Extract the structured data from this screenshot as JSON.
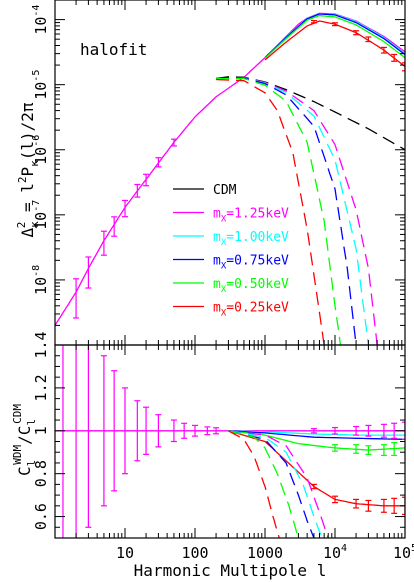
{
  "chart_data": [
    {
      "panel": "top",
      "type": "line",
      "scale": {
        "x": "log",
        "y": "log"
      },
      "xlim": [
        1,
        100000
      ],
      "ylim": [
        1e-09,
        0.0002
      ],
      "ylabel_parts": {
        "delta": "Δ",
        "sub": "κ",
        "sup": "2",
        "eq": " = l",
        "lsup": "2",
        "p": "P",
        "psub": "κ",
        "tail": "(l)/2π"
      },
      "ytick_labels": [
        "10^-8",
        "10^-7",
        "10^-6",
        "10^-5",
        "10^-4"
      ],
      "annotation": "halofit",
      "legend": {
        "placement": "center-right",
        "entries": [
          {
            "label": "CDM",
            "color": "#000000"
          },
          {
            "label": "m_X=1.25keV",
            "color": "#ff00ff"
          },
          {
            "label": "m_X=1.00keV",
            "color": "#00ffff"
          },
          {
            "label": "m_X=0.75keV",
            "color": "#0000ff"
          },
          {
            "label": "m_X=0.50keV",
            "color": "#00ff00"
          },
          {
            "label": "m_X=0.25keV",
            "color": "#ff0000"
          }
        ]
      },
      "series": [
        {
          "key": "cdm_nonlinear",
          "color": "#ff00ff",
          "style": "solid",
          "x": [
            1,
            2,
            3,
            5,
            10,
            20,
            50,
            100,
            200,
            500,
            1000,
            2000,
            3000,
            4000,
            6000,
            10000,
            20000,
            50000,
            100000
          ],
          "y": [
            2e-09,
            6.5e-09,
            1.5e-08,
            4e-08,
            1.3e-07,
            3.5e-07,
            1.3e-06,
            3.2e-06,
            6.5e-06,
            1.3e-05,
            2.6e-05,
            5.5e-05,
            8.5e-05,
            0.000105,
            0.000125,
            0.000122,
            9.5e-05,
            5.5e-05,
            3.2e-05
          ]
        },
        {
          "key": "wdm_1.25_nonlinear",
          "color": "#00ffff",
          "style": "solid",
          "x": [
            1000,
            2000,
            4000,
            6000,
            10000,
            20000,
            50000,
            100000
          ],
          "y": [
            2.6e-05,
            5.4e-05,
            0.000104,
            0.000123,
            0.00012,
            9.3e-05,
            5.3e-05,
            3e-05
          ]
        },
        {
          "key": "wdm_0.75_nonlinear",
          "color": "#0000ff",
          "style": "solid",
          "x": [
            1000,
            2000,
            4000,
            6000,
            10000,
            20000,
            50000,
            100000
          ],
          "y": [
            2.6e-05,
            5.3e-05,
            0.000103,
            0.000122,
            0.000118,
            9e-05,
            5.1e-05,
            2.9e-05
          ]
        },
        {
          "key": "wdm_0.50_nonlinear",
          "color": "#00ff00",
          "style": "solid",
          "x": [
            1000,
            2000,
            4000,
            6000,
            10000,
            20000,
            50000,
            100000
          ],
          "y": [
            2.55e-05,
            5.1e-05,
            9.8e-05,
            0.000115,
            0.00011,
            8.3e-05,
            4.6e-05,
            2.6e-05
          ]
        },
        {
          "key": "wdm_0.25_nonlinear",
          "color": "#ff0000",
          "style": "solid",
          "x": [
            1000,
            2000,
            4000,
            6000,
            10000,
            20000,
            50000,
            100000
          ],
          "y": [
            2.4e-05,
            4.5e-05,
            8e-05,
            9.5e-05,
            8.5e-05,
            6.3e-05,
            3.4e-05,
            1.9e-05
          ]
        },
        {
          "key": "cdm_linear",
          "color": "#000000",
          "style": "dashed",
          "x": [
            200,
            300,
            500,
            1000,
            2000,
            5000,
            10000,
            30000,
            100000
          ],
          "y": [
            1.25e-05,
            1.32e-05,
            1.3e-05,
            1.1e-05,
            8.4e-06,
            5.5e-06,
            3.8e-06,
            2.1e-06,
            1e-06
          ]
        },
        {
          "key": "wdm_1.25_linear",
          "color": "#ff00ff",
          "style": "dashed",
          "x": [
            200,
            500,
            1000,
            2000,
            5000,
            10000,
            20000,
            30000,
            40000
          ],
          "y": [
            1.25e-05,
            1.28e-05,
            1.08e-05,
            8e-06,
            4e-06,
            1.2e-06,
            1.2e-07,
            1.5e-08,
            1e-09
          ]
        },
        {
          "key": "wdm_1.00_linear",
          "color": "#00ffff",
          "style": "dashed",
          "x": [
            200,
            500,
            1000,
            2000,
            5000,
            10000,
            20000,
            30000
          ],
          "y": [
            1.25e-05,
            1.27e-05,
            1.06e-05,
            7.6e-06,
            3.3e-06,
            7e-07,
            3e-08,
            1e-09
          ]
        },
        {
          "key": "wdm_0.75_linear",
          "color": "#0000ff",
          "style": "dashed",
          "x": [
            200,
            500,
            1000,
            2000,
            5000,
            10000,
            15000,
            20000
          ],
          "y": [
            1.25e-05,
            1.26e-05,
            1.04e-05,
            7e-06,
            2.3e-06,
            2.5e-07,
            1.5e-08,
            1e-09
          ]
        },
        {
          "key": "wdm_0.50_linear",
          "color": "#00ff00",
          "style": "dashed",
          "x": [
            200,
            500,
            1000,
            2000,
            4000,
            7000,
            10000,
            12000
          ],
          "y": [
            1.24e-05,
            1.24e-05,
            9.8e-06,
            5.6e-06,
            1.3e-06,
            8e-08,
            4e-09,
            1e-09
          ]
        },
        {
          "key": "wdm_0.25_linear",
          "color": "#ff0000",
          "style": "dashed",
          "x": [
            200,
            500,
            1000,
            1500,
            2500,
            4000,
            5500,
            7000
          ],
          "y": [
            1.2e-05,
            1.15e-05,
            7.5e-06,
            4e-06,
            9e-07,
            6e-08,
            6e-09,
            1e-09
          ]
        }
      ],
      "errorbars": {
        "color": "#ff00ff",
        "x": [
          2,
          3,
          5,
          7,
          10,
          15,
          20,
          30,
          50
        ],
        "y": [
          6.5e-09,
          1.5e-08,
          4e-08,
          7e-08,
          1.3e-07,
          2.4e-07,
          3.5e-07,
          6.5e-07,
          1.3e-06
        ],
        "rel": [
          0.6,
          0.5,
          0.4,
          0.33,
          0.28,
          0.22,
          0.2,
          0.16,
          0.12
        ]
      },
      "errorbars_high": {
        "color": "#ff0000",
        "x": [
          5000,
          10000,
          20000,
          30000,
          50000,
          70000,
          100000
        ],
        "y": [
          9.3e-05,
          8.5e-05,
          6.3e-05,
          5e-05,
          3.4e-05,
          2.6e-05,
          1.9e-05
        ],
        "rel": [
          0.04,
          0.05,
          0.07,
          0.08,
          0.1,
          0.12,
          0.14
        ]
      }
    },
    {
      "panel": "bottom",
      "type": "line",
      "scale": {
        "x": "log",
        "y": "linear"
      },
      "xlim": [
        1,
        100000
      ],
      "ylim": [
        0.5,
        1.4
      ],
      "ylabel_parts": {
        "c": "C",
        "csub": "l",
        "csup": "WDM",
        "slash": "/",
        "d": "C",
        "dsub": "l",
        "dsup": "CDM"
      },
      "xlabel": "Harmonic Multipole l",
      "xtick_labels": [
        "10",
        "100",
        "1000",
        "10^4",
        "10^5"
      ],
      "ytick_labels": [
        "0.6",
        "0.8",
        "1",
        "1.2",
        "1.4"
      ],
      "series": [
        {
          "key": "cdm_ratio",
          "color": "#ff00ff",
          "style": "solid",
          "x": [
            1,
            100000
          ],
          "y": [
            1,
            1
          ]
        },
        {
          "key": "nl_1.25",
          "color": "#00ffff",
          "style": "solid",
          "x": [
            300,
            1000,
            5000,
            20000,
            100000
          ],
          "y": [
            1,
            0.995,
            0.985,
            0.98,
            0.98
          ]
        },
        {
          "key": "nl_0.75",
          "color": "#0000ff",
          "style": "solid",
          "x": [
            300,
            1000,
            5000,
            20000,
            100000
          ],
          "y": [
            1,
            0.99,
            0.97,
            0.965,
            0.96
          ]
        },
        {
          "key": "nl_0.50",
          "color": "#00ff00",
          "style": "solid",
          "x": [
            300,
            1000,
            3000,
            10000,
            30000,
            100000
          ],
          "y": [
            1,
            0.98,
            0.94,
            0.92,
            0.91,
            0.92
          ]
        },
        {
          "key": "nl_0.25",
          "color": "#ff0000",
          "style": "solid",
          "x": [
            300,
            1000,
            2000,
            5000,
            10000,
            20000,
            50000,
            100000
          ],
          "y": [
            1,
            0.95,
            0.86,
            0.74,
            0.68,
            0.66,
            0.65,
            0.65
          ]
        },
        {
          "key": "lin_1.25",
          "color": "#ff00ff",
          "style": "dashed",
          "x": [
            300,
            1000,
            2000,
            4000,
            6000,
            8000
          ],
          "y": [
            1,
            0.98,
            0.93,
            0.78,
            0.62,
            0.5
          ]
        },
        {
          "key": "lin_1.00",
          "color": "#00ffff",
          "style": "dashed",
          "x": [
            300,
            1000,
            2000,
            3500,
            5000,
            6500
          ],
          "y": [
            1,
            0.97,
            0.9,
            0.75,
            0.6,
            0.5
          ]
        },
        {
          "key": "lin_0.75",
          "color": "#0000ff",
          "style": "dashed",
          "x": [
            300,
            1000,
            2000,
            3000,
            4000,
            5000
          ],
          "y": [
            1,
            0.96,
            0.85,
            0.7,
            0.58,
            0.5
          ]
        },
        {
          "key": "lin_0.50",
          "color": "#00ff00",
          "style": "dashed",
          "x": [
            300,
            700,
            1000,
            1500,
            2200,
            3000
          ],
          "y": [
            1,
            0.97,
            0.92,
            0.8,
            0.65,
            0.5
          ]
        },
        {
          "key": "lin_0.25",
          "color": "#ff0000",
          "style": "dashed",
          "x": [
            300,
            500,
            700,
            1000,
            1300,
            1600
          ],
          "y": [
            1,
            0.96,
            0.88,
            0.74,
            0.6,
            0.5
          ]
        }
      ],
      "errorbars": {
        "color": "#ff00ff",
        "x": [
          1.3,
          2,
          3,
          5,
          7,
          10,
          15,
          20,
          30,
          50,
          70,
          100,
          150,
          200
        ],
        "y": [
          1,
          1,
          1,
          1,
          1,
          1,
          1,
          1,
          1,
          1,
          1,
          1,
          1,
          1
        ],
        "err": [
          0.6,
          0.55,
          0.45,
          0.35,
          0.28,
          0.2,
          0.14,
          0.11,
          0.075,
          0.05,
          0.035,
          0.025,
          0.018,
          0.014
        ]
      },
      "errorbars_high": [
        {
          "color": "#ff00ff",
          "x": [
            5000,
            10000,
            20000,
            30000,
            50000,
            70000,
            100000
          ],
          "y": [
            1,
            1,
            1,
            1,
            1,
            1,
            1
          ],
          "err": [
            0.01,
            0.015,
            0.02,
            0.025,
            0.03,
            0.035,
            0.04
          ]
        },
        {
          "color": "#00ff00",
          "x": [
            10000,
            20000,
            30000,
            50000,
            70000
          ],
          "y": [
            0.92,
            0.915,
            0.91,
            0.91,
            0.915
          ],
          "err": [
            0.015,
            0.02,
            0.02,
            0.025,
            0.03
          ]
        },
        {
          "color": "#ff0000",
          "x": [
            5000,
            10000,
            20000,
            30000,
            50000,
            70000,
            100000
          ],
          "y": [
            0.74,
            0.68,
            0.66,
            0.65,
            0.65,
            0.65,
            0.65
          ],
          "err": [
            0.01,
            0.015,
            0.02,
            0.025,
            0.03,
            0.035,
            0.04
          ]
        }
      ]
    }
  ]
}
